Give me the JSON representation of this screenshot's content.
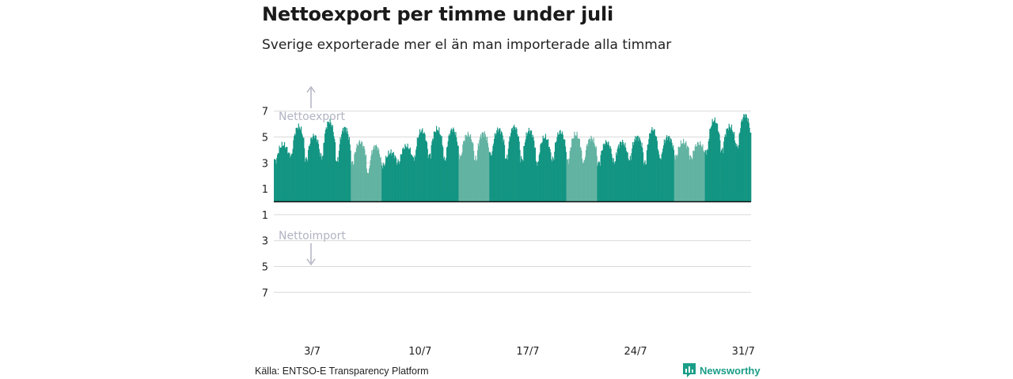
{
  "title": "Nettoexport per timme under juli",
  "subtitle": "Sverige exporterade mer el än man importerade alla timmar",
  "source": "Källa: ENTSO-E Transparency Platform",
  "brand": "Newsworthy",
  "colors": {
    "bar_light": "#62b3a2",
    "bar_dark": "#139582",
    "grid": "#d9d9d9",
    "zero_line": "#111111",
    "annotation": "#b3b3c3",
    "brand": "#1a9e88"
  },
  "chart_data": {
    "type": "bar",
    "title": "Nettoexport per timme under juli",
    "subtitle": "Sverige exporterade mer el än man importerade alla timmar",
    "ylim": [
      -8,
      7.6
    ],
    "yticks": [
      7,
      5,
      3,
      1,
      -1,
      -3,
      -5,
      -7
    ],
    "ytick_labels": [
      "7",
      "5",
      "3",
      "1",
      "1",
      "3",
      "5",
      "7"
    ],
    "x_range": [
      "2019-07-01",
      "2019-08-01"
    ],
    "xticks": [
      "2019-07-03",
      "2019-07-10",
      "2019-07-17",
      "2019-07-24",
      "2019-07-31"
    ],
    "xtick_labels": [
      "3/7",
      "10/7",
      "17/7",
      "24/7",
      "31/7"
    ],
    "annotations": [
      "Nettoexport",
      "Nettoimport"
    ],
    "grid": true,
    "legend": "none",
    "day_shading": "weekdays dark, weekends light",
    "daily": [
      {
        "date": "2019-07-01",
        "night": 3.2,
        "day": 4.4
      },
      {
        "date": "2019-07-02",
        "night": 3.6,
        "day": 5.8
      },
      {
        "date": "2019-07-03",
        "night": 3.3,
        "day": 5.1
      },
      {
        "date": "2019-07-04",
        "night": 3.5,
        "day": 6.2
      },
      {
        "date": "2019-07-05",
        "night": 3.2,
        "day": 5.7
      },
      {
        "date": "2019-07-06",
        "night": 3.0,
        "day": 4.6
      },
      {
        "date": "2019-07-07",
        "night": 2.3,
        "day": 4.3
      },
      {
        "date": "2019-07-08",
        "night": 2.8,
        "day": 3.8
      },
      {
        "date": "2019-07-09",
        "night": 3.1,
        "day": 4.3
      },
      {
        "date": "2019-07-10",
        "night": 3.4,
        "day": 5.5
      },
      {
        "date": "2019-07-11",
        "night": 3.6,
        "day": 5.6
      },
      {
        "date": "2019-07-12",
        "night": 3.3,
        "day": 5.6
      },
      {
        "date": "2019-07-13",
        "night": 3.5,
        "day": 5.2
      },
      {
        "date": "2019-07-14",
        "night": 3.3,
        "day": 5.3
      },
      {
        "date": "2019-07-15",
        "night": 3.7,
        "day": 5.6
      },
      {
        "date": "2019-07-16",
        "night": 3.4,
        "day": 5.8
      },
      {
        "date": "2019-07-17",
        "night": 3.3,
        "day": 5.5
      },
      {
        "date": "2019-07-18",
        "night": 3.0,
        "day": 5.0
      },
      {
        "date": "2019-07-19",
        "night": 3.3,
        "day": 5.4
      },
      {
        "date": "2019-07-20",
        "night": 3.2,
        "day": 5.2
      },
      {
        "date": "2019-07-21",
        "night": 3.1,
        "day": 4.9
      },
      {
        "date": "2019-07-22",
        "night": 3.0,
        "day": 4.6
      },
      {
        "date": "2019-07-23",
        "night": 3.1,
        "day": 4.6
      },
      {
        "date": "2019-07-24",
        "night": 3.3,
        "day": 5.0
      },
      {
        "date": "2019-07-25",
        "night": 3.0,
        "day": 5.6
      },
      {
        "date": "2019-07-26",
        "night": 3.4,
        "day": 5.0
      },
      {
        "date": "2019-07-27",
        "night": 3.5,
        "day": 4.6
      },
      {
        "date": "2019-07-28",
        "night": 3.4,
        "day": 4.5
      },
      {
        "date": "2019-07-29",
        "night": 3.9,
        "day": 6.3
      },
      {
        "date": "2019-07-30",
        "night": 4.0,
        "day": 5.8
      },
      {
        "date": "2019-07-31",
        "night": 4.3,
        "day": 6.7
      }
    ]
  }
}
